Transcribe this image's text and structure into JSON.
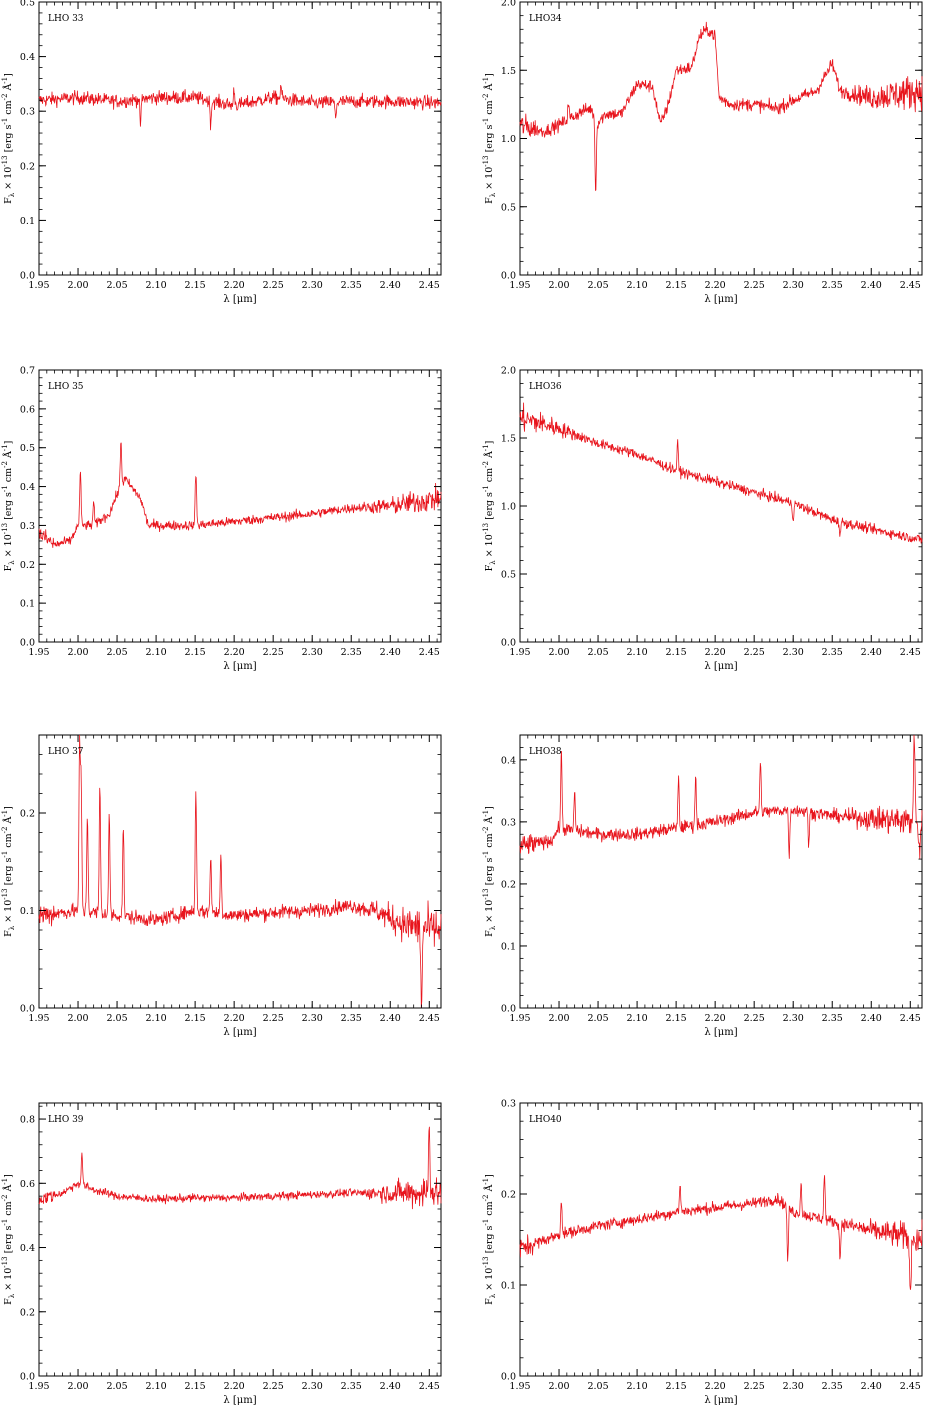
{
  "figure": {
    "spectrum_color": "#e8141c",
    "xlabel": "λ [μm]",
    "ylabel_parts": [
      "F",
      "λ",
      " × 10",
      "-13",
      " [erg s",
      "-1",
      " cm",
      "-2",
      " Å",
      "-1",
      "]"
    ],
    "x_ticks": [
      "1.95",
      "2.00",
      "2.05",
      "2.10",
      "2.15",
      "2.20",
      "2.25",
      "2.30",
      "2.35",
      "2.40",
      "2.45"
    ]
  },
  "chart_data": [
    {
      "type": "line",
      "label": "LHO 33",
      "xlim": [
        1.95,
        2.465
      ],
      "ylim": [
        0.0,
        0.5
      ],
      "y_ticks": [
        0.0,
        0.1,
        0.2,
        0.3,
        0.4,
        0.5
      ],
      "y_tick_labels": [
        "0.0",
        "0.1",
        "0.2",
        "0.3",
        "0.4",
        "0.5"
      ],
      "x": [
        1.95,
        2.0,
        2.05,
        2.1,
        2.15,
        2.2,
        2.25,
        2.3,
        2.35,
        2.4,
        2.465
      ],
      "y": [
        0.32,
        0.325,
        0.318,
        0.325,
        0.325,
        0.31,
        0.325,
        0.315,
        0.318,
        0.318,
        0.315
      ],
      "noise": 0.012,
      "features": [
        [
          2.08,
          -0.045
        ],
        [
          2.17,
          -0.04
        ],
        [
          2.2,
          0.03
        ],
        [
          2.26,
          0.025
        ],
        [
          2.33,
          -0.03
        ]
      ]
    },
    {
      "type": "line",
      "label": "LHO34",
      "xlim": [
        1.95,
        2.465
      ],
      "ylim": [
        0.0,
        2.0
      ],
      "y_ticks": [
        0.0,
        0.5,
        1.0,
        1.5,
        2.0
      ],
      "y_tick_labels": [
        "0.0",
        "0.5",
        "1.0",
        "1.5",
        "2.0"
      ],
      "x": [
        1.95,
        1.98,
        2.0,
        2.03,
        2.04,
        2.05,
        2.06,
        2.08,
        2.1,
        2.12,
        2.13,
        2.14,
        2.15,
        2.17,
        2.18,
        2.19,
        2.2,
        2.205,
        2.22,
        2.25,
        2.28,
        2.3,
        2.33,
        2.35,
        2.36,
        2.4,
        2.465
      ],
      "y": [
        1.1,
        1.05,
        1.1,
        1.2,
        1.22,
        1.12,
        1.18,
        1.18,
        1.4,
        1.38,
        1.1,
        1.25,
        1.5,
        1.52,
        1.75,
        1.8,
        1.75,
        1.3,
        1.25,
        1.25,
        1.22,
        1.28,
        1.35,
        1.55,
        1.35,
        1.3,
        1.35
      ],
      "noise": 0.045,
      "noise_far": 0.12,
      "features": [
        [
          2.047,
          -0.55
        ],
        [
          2.012,
          0.12
        ]
      ]
    },
    {
      "type": "line",
      "label": "LHO 35",
      "xlim": [
        1.95,
        2.465
      ],
      "ylim": [
        0.0,
        0.7
      ],
      "y_ticks": [
        0.0,
        0.1,
        0.2,
        0.3,
        0.4,
        0.5,
        0.6,
        0.7
      ],
      "y_tick_labels": [
        "0.0",
        "0.1",
        "0.2",
        "0.3",
        "0.4",
        "0.5",
        "0.6",
        "0.7"
      ],
      "x": [
        1.95,
        1.97,
        1.99,
        2.0,
        2.02,
        2.04,
        2.05,
        2.06,
        2.08,
        2.09,
        2.1,
        2.15,
        2.2,
        2.25,
        2.3,
        2.35,
        2.4,
        2.465
      ],
      "y": [
        0.28,
        0.25,
        0.26,
        0.3,
        0.3,
        0.33,
        0.38,
        0.42,
        0.37,
        0.3,
        0.3,
        0.3,
        0.31,
        0.32,
        0.33,
        0.345,
        0.35,
        0.37
      ],
      "noise": 0.012,
      "noise_far": 0.03,
      "features": [
        [
          2.003,
          0.14
        ],
        [
          2.055,
          0.12
        ],
        [
          2.151,
          0.14
        ],
        [
          2.02,
          0.06
        ]
      ]
    },
    {
      "type": "line",
      "label": "LHO36",
      "xlim": [
        1.95,
        2.465
      ],
      "ylim": [
        0.0,
        2.0
      ],
      "y_ticks": [
        0.0,
        0.5,
        1.0,
        1.5,
        2.0
      ],
      "y_tick_labels": [
        "0.0",
        "0.5",
        "1.0",
        "1.5",
        "2.0"
      ],
      "x": [
        1.95,
        2.0,
        2.05,
        2.1,
        2.15,
        2.2,
        2.25,
        2.3,
        2.35,
        2.4,
        2.465
      ],
      "y": [
        1.65,
        1.57,
        1.46,
        1.38,
        1.26,
        1.18,
        1.1,
        1.02,
        0.9,
        0.83,
        0.75
      ],
      "noise": 0.035,
      "noise_near": 0.1,
      "features": [
        [
          2.152,
          0.2
        ],
        [
          2.3,
          -0.12
        ],
        [
          2.36,
          -0.1
        ]
      ]
    },
    {
      "type": "line",
      "label": "LHO 37",
      "xlim": [
        1.95,
        2.465
      ],
      "ylim": [
        0.0,
        0.28
      ],
      "y_ticks": [
        0.0,
        0.1,
        0.2
      ],
      "y_tick_labels": [
        "0.0",
        "0.1",
        "0.2"
      ],
      "x": [
        1.95,
        2.0,
        2.05,
        2.1,
        2.15,
        2.2,
        2.25,
        2.3,
        2.35,
        2.38,
        2.42,
        2.465
      ],
      "y": [
        0.095,
        0.1,
        0.095,
        0.09,
        0.1,
        0.095,
        0.098,
        0.1,
        0.105,
        0.1,
        0.085,
        0.08
      ],
      "noise": 0.007,
      "noise_far": 0.02,
      "features": [
        [
          2.002,
          0.17
        ],
        [
          2.004,
          0.13
        ],
        [
          2.012,
          0.1
        ],
        [
          2.028,
          0.13
        ],
        [
          2.04,
          0.1
        ],
        [
          2.058,
          0.09
        ],
        [
          2.151,
          0.125
        ],
        [
          2.17,
          0.06
        ],
        [
          2.183,
          0.06
        ],
        [
          2.44,
          -0.09
        ]
      ]
    },
    {
      "type": "line",
      "label": "LHO38",
      "xlim": [
        1.95,
        2.465
      ],
      "ylim": [
        0.0,
        0.44
      ],
      "y_ticks": [
        0.0,
        0.1,
        0.2,
        0.3,
        0.4
      ],
      "y_tick_labels": [
        "0.0",
        "0.1",
        "0.2",
        "0.3",
        "0.4"
      ],
      "x": [
        1.95,
        1.99,
        2.0,
        2.05,
        2.1,
        2.15,
        2.2,
        2.25,
        2.3,
        2.35,
        2.4,
        2.465
      ],
      "y": [
        0.26,
        0.27,
        0.29,
        0.28,
        0.28,
        0.29,
        0.3,
        0.315,
        0.32,
        0.31,
        0.305,
        0.3
      ],
      "noise": 0.01,
      "noise_far": 0.025,
      "features": [
        [
          2.003,
          0.12
        ],
        [
          2.02,
          0.06
        ],
        [
          2.153,
          0.08
        ],
        [
          2.175,
          0.075
        ],
        [
          2.258,
          0.08
        ],
        [
          2.295,
          -0.07
        ],
        [
          2.32,
          -0.05
        ],
        [
          2.455,
          0.16
        ],
        [
          2.462,
          -0.06
        ]
      ]
    },
    {
      "type": "line",
      "label": "LHO 39",
      "xlim": [
        1.95,
        2.465
      ],
      "ylim": [
        0.0,
        0.85
      ],
      "y_ticks": [
        0.0,
        0.2,
        0.4,
        0.6,
        0.8
      ],
      "y_tick_labels": [
        "0.0",
        "0.2",
        "0.4",
        "0.6",
        "0.8"
      ],
      "x": [
        1.95,
        1.98,
        2.0,
        2.02,
        2.05,
        2.1,
        2.15,
        2.2,
        2.25,
        2.3,
        2.35,
        2.4,
        2.465
      ],
      "y": [
        0.55,
        0.57,
        0.6,
        0.58,
        0.56,
        0.55,
        0.555,
        0.555,
        0.56,
        0.565,
        0.57,
        0.57,
        0.57
      ],
      "noise": 0.012,
      "noise_far": 0.05,
      "features": [
        [
          2.005,
          0.1
        ],
        [
          2.45,
          0.24
        ]
      ]
    },
    {
      "type": "line",
      "label": "LHO40",
      "xlim": [
        1.95,
        2.465
      ],
      "ylim": [
        0.0,
        0.3
      ],
      "y_ticks": [
        0.0,
        0.1,
        0.2,
        0.3
      ],
      "y_tick_labels": [
        "0.0",
        "0.1",
        "0.2",
        "0.3"
      ],
      "x": [
        1.95,
        2.0,
        2.05,
        2.1,
        2.15,
        2.2,
        2.25,
        2.28,
        2.3,
        2.35,
        2.4,
        2.465
      ],
      "y": [
        0.14,
        0.155,
        0.165,
        0.172,
        0.18,
        0.185,
        0.19,
        0.195,
        0.18,
        0.17,
        0.16,
        0.15
      ],
      "noise": 0.006,
      "noise_far": 0.015,
      "features": [
        [
          2.003,
          0.04
        ],
        [
          2.155,
          0.03
        ],
        [
          2.293,
          -0.06
        ],
        [
          2.34,
          0.05
        ],
        [
          2.36,
          -0.04
        ],
        [
          2.45,
          -0.07
        ],
        [
          2.31,
          0.035
        ]
      ]
    }
  ]
}
